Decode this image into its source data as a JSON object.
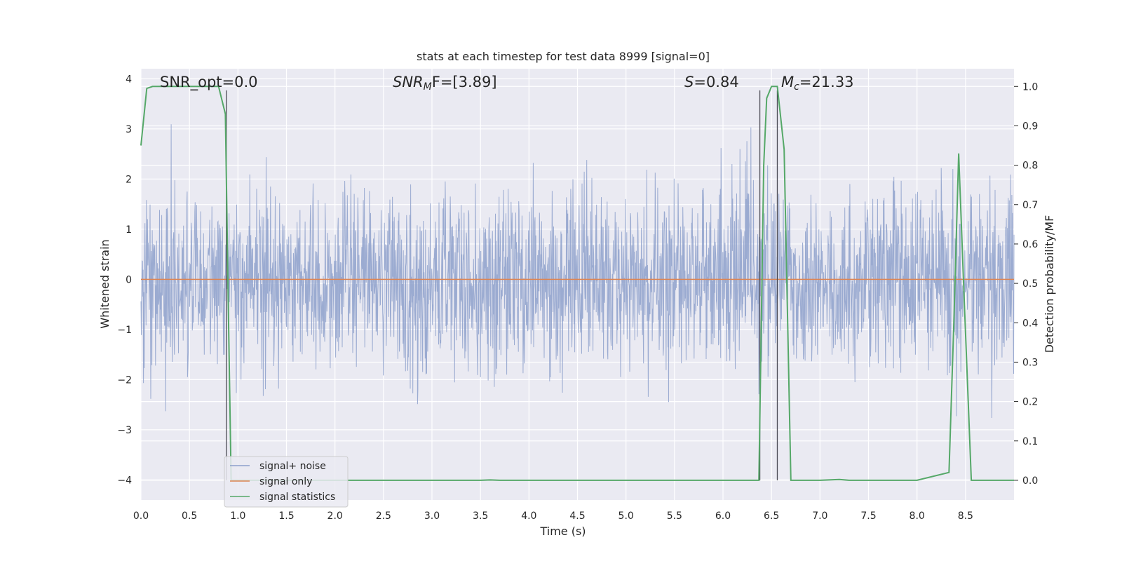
{
  "chart_data": {
    "type": "line",
    "title": "stats at each timestep for test data 8999 [signal=0]",
    "xlabel": "Time (s)",
    "ylabel_left": "Whitened strain",
    "ylabel_right": "Detection probability/MF",
    "xlim": [
      0,
      9.0
    ],
    "ylim_left": [
      -4.4,
      4.2
    ],
    "ylim_right": [
      -0.05,
      1.045
    ],
    "x_ticks": [
      "0.0",
      "0.5",
      "1.0",
      "1.5",
      "2.0",
      "2.5",
      "3.0",
      "3.5",
      "4.0",
      "4.5",
      "5.0",
      "5.5",
      "6.0",
      "6.5",
      "7.0",
      "7.5",
      "8.0",
      "8.5"
    ],
    "y_ticks_left": [
      "−4",
      "−3",
      "−2",
      "−1",
      "0",
      "1",
      "2",
      "3",
      "4"
    ],
    "y_ticks_right": [
      "0.0",
      "0.1",
      "0.2",
      "0.3",
      "0.4",
      "0.5",
      "0.6",
      "0.7",
      "0.8",
      "0.9",
      "1.0"
    ],
    "grid": true,
    "legend_position": "lower-left",
    "annotations": {
      "snr_opt": "SNR_opt=0.0",
      "snr_mf_prefix": "SNR",
      "snr_mf_sub": "M",
      "snr_mf_suffix": "F=[3.89]",
      "s_prefix": "S",
      "s_value": "=0.84",
      "mc_prefix": "M",
      "mc_sub": "c",
      "mc_value": "=21.33"
    },
    "series": [
      {
        "name": "signal+ noise",
        "color": "#8da0cb",
        "axis": "left",
        "description_values": "noise, approx. uniform amplitude between -3.5 and 3.5 over full time range"
      },
      {
        "name": "signal only",
        "color": "#dd8452",
        "axis": "left",
        "x": [
          0,
          9.0
        ],
        "y": [
          0,
          0
        ]
      },
      {
        "name": "signal statistics",
        "color": "#55a868",
        "axis": "right",
        "x": [
          0.0,
          0.06,
          0.12,
          0.2,
          0.5,
          0.8,
          0.87,
          0.9,
          0.93,
          1.0,
          1.5,
          2.0,
          2.5,
          3.0,
          3.5,
          3.6,
          3.7,
          4.0,
          5.0,
          6.0,
          6.37,
          6.42,
          6.45,
          6.5,
          6.56,
          6.63,
          6.7,
          7.0,
          7.2,
          7.3,
          8.0,
          8.33,
          8.38,
          8.43,
          8.48,
          8.56,
          9.0
        ],
        "y": [
          0.85,
          0.995,
          1.0,
          1.0,
          1.0,
          1.0,
          0.93,
          0.45,
          0.0,
          0.0,
          0.0,
          0.0,
          0.0,
          0.0,
          0.0,
          0.001,
          0.0,
          0.0,
          0.0,
          0.0,
          0.0,
          0.8,
          0.97,
          1.0,
          1.0,
          0.84,
          0.0,
          0.0,
          0.002,
          0.0,
          0.0,
          0.02,
          0.4,
          0.83,
          0.5,
          0.0,
          0.0
        ]
      }
    ],
    "vertical_markers": [
      {
        "x": 0.88,
        "y_top": 0.99
      },
      {
        "x": 6.38,
        "y_top": 0.99
      },
      {
        "x": 6.56,
        "y_top": 0.99
      }
    ]
  }
}
